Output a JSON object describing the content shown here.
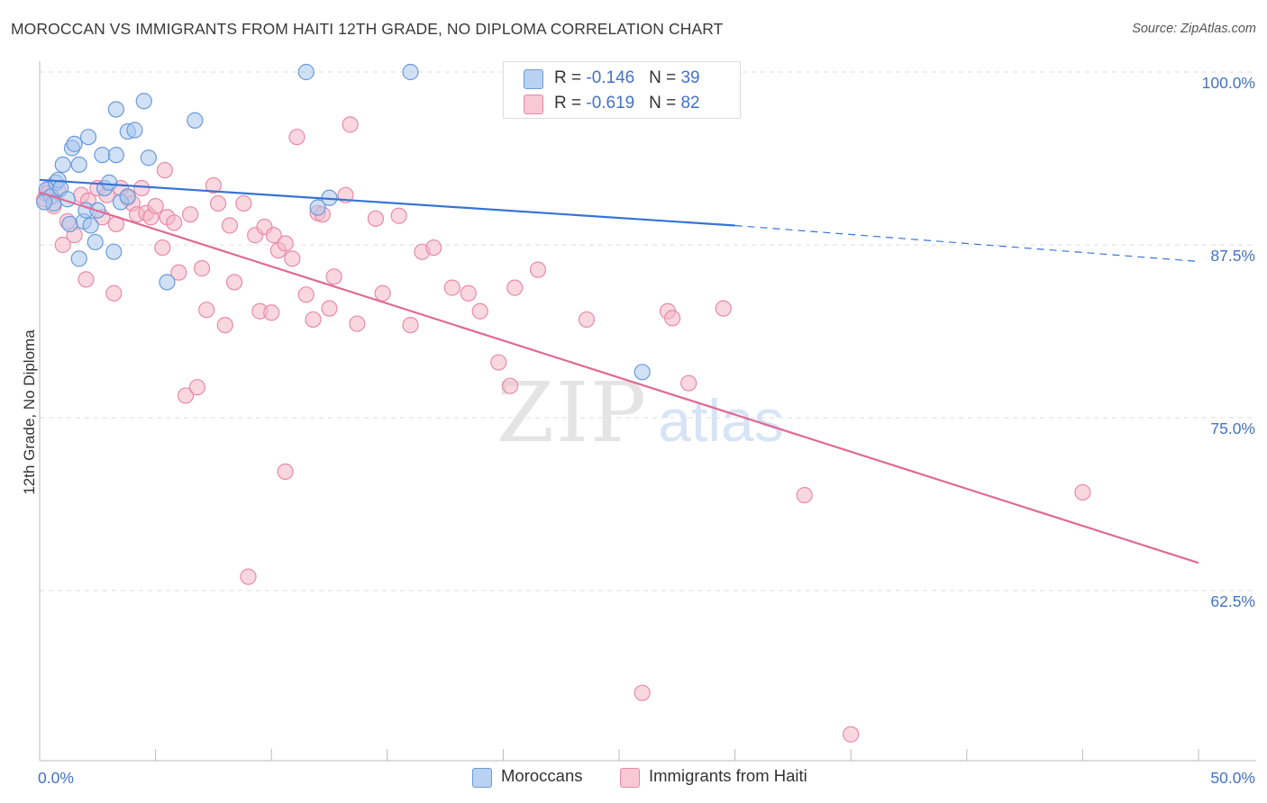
{
  "title": "MOROCCAN VS IMMIGRANTS FROM HAITI 12TH GRADE, NO DIPLOMA CORRELATION CHART",
  "source": "Source: ZipAtlas.com",
  "watermark": {
    "zip": "ZIP",
    "atlas": "atlas"
  },
  "legend": {
    "rows": [
      {
        "r_label": "R = ",
        "r_value": "-0.146",
        "n_label": "N = ",
        "n_value": "39"
      },
      {
        "r_label": "R = ",
        "r_value": "-0.619",
        "n_label": "N = ",
        "n_value": "82"
      }
    ]
  },
  "colors": {
    "blue_fill": "#aac8ef",
    "blue_stroke": "#6b9ad9",
    "blue_line": "#3574d4",
    "pink_fill": "#f4b6c9",
    "pink_stroke": "#e98aa8",
    "pink_line": "#e06a94",
    "axis_label": "#4472c4",
    "grid": "#dcdcdc"
  },
  "chart_data": {
    "type": "scatter",
    "title": "MOROCCAN VS IMMIGRANTS FROM HAITI 12TH GRADE, NO DIPLOMA CORRELATION CHART",
    "xlabel": "",
    "ylabel": "12th Grade, No Diploma",
    "xlim": [
      0,
      50
    ],
    "ylim": [
      50.5,
      101
    ],
    "x_tick_labels": [
      "0.0%",
      "50.0%"
    ],
    "y_ticks": [
      100,
      87.5,
      75,
      62.5
    ],
    "y_tick_labels": [
      "100.0%",
      "87.5%",
      "75.0%",
      "62.5%"
    ],
    "legend_position": "bottom",
    "series": [
      {
        "name": "Moroccans",
        "r": -0.146,
        "n": 39,
        "trend": {
          "x0": 0,
          "y0": 92.2,
          "x1": 30,
          "y1": 88.9,
          "dash_to_x": 50,
          "dash_to_y": 86.3
        },
        "points": [
          [
            0.3,
            91.5
          ],
          [
            0.5,
            91
          ],
          [
            0.6,
            90.5
          ],
          [
            0.7,
            92
          ],
          [
            0.8,
            92.2
          ],
          [
            0.9,
            91.6
          ],
          [
            1.0,
            93.3
          ],
          [
            1.2,
            90.8
          ],
          [
            1.3,
            89
          ],
          [
            1.4,
            94.5
          ],
          [
            1.5,
            94.8
          ],
          [
            1.7,
            86.5
          ],
          [
            1.7,
            93.3
          ],
          [
            1.9,
            89.2
          ],
          [
            2.0,
            90
          ],
          [
            2.1,
            95.3
          ],
          [
            2.2,
            88.9
          ],
          [
            2.4,
            87.7
          ],
          [
            2.5,
            90
          ],
          [
            2.7,
            94
          ],
          [
            2.8,
            91.6
          ],
          [
            3.0,
            92
          ],
          [
            3.2,
            87
          ],
          [
            3.3,
            94
          ],
          [
            3.3,
            97.3
          ],
          [
            3.5,
            90.6
          ],
          [
            3.8,
            91
          ],
          [
            3.8,
            95.7
          ],
          [
            4.1,
            95.8
          ],
          [
            4.5,
            97.9
          ],
          [
            4.7,
            93.8
          ],
          [
            5.5,
            84.8
          ],
          [
            6.7,
            96.5
          ],
          [
            11.5,
            100
          ],
          [
            12.0,
            90.2
          ],
          [
            12.5,
            90.9
          ],
          [
            16.0,
            100
          ],
          [
            26.0,
            78.3
          ],
          [
            0.2,
            90.6
          ]
        ]
      },
      {
        "name": "Immigrants from Haiti",
        "r": -0.619,
        "n": 82,
        "trend": {
          "x0": 0,
          "y0": 91.3,
          "x1": 50,
          "y1": 64.5
        },
        "points": [
          [
            0.2,
            90.8
          ],
          [
            0.4,
            91.5
          ],
          [
            0.6,
            90.3
          ],
          [
            0.8,
            91.4
          ],
          [
            1.0,
            87.5
          ],
          [
            1.2,
            89.2
          ],
          [
            1.5,
            88.2
          ],
          [
            1.8,
            91.1
          ],
          [
            2.0,
            85
          ],
          [
            2.1,
            90.7
          ],
          [
            2.5,
            91.6
          ],
          [
            2.7,
            89.5
          ],
          [
            2.9,
            91.1
          ],
          [
            3.2,
            84
          ],
          [
            3.3,
            89
          ],
          [
            3.5,
            91.6
          ],
          [
            3.8,
            90.9
          ],
          [
            4.0,
            90.5
          ],
          [
            4.2,
            89.7
          ],
          [
            4.4,
            91.6
          ],
          [
            4.6,
            89.8
          ],
          [
            4.8,
            89.5
          ],
          [
            5.0,
            90.3
          ],
          [
            5.3,
            87.3
          ],
          [
            5.4,
            92.9
          ],
          [
            5.5,
            89.5
          ],
          [
            5.8,
            89.1
          ],
          [
            6.0,
            85.5
          ],
          [
            6.3,
            76.6
          ],
          [
            6.5,
            89.7
          ],
          [
            6.8,
            77.2
          ],
          [
            7.0,
            85.8
          ],
          [
            7.2,
            82.8
          ],
          [
            7.5,
            91.8
          ],
          [
            7.7,
            90.5
          ],
          [
            8.0,
            81.7
          ],
          [
            8.2,
            88.9
          ],
          [
            8.4,
            84.8
          ],
          [
            8.8,
            90.5
          ],
          [
            9.0,
            63.5
          ],
          [
            9.3,
            88.2
          ],
          [
            9.5,
            82.7
          ],
          [
            9.7,
            88.8
          ],
          [
            10.0,
            82.6
          ],
          [
            10.1,
            88.2
          ],
          [
            10.3,
            87.1
          ],
          [
            10.6,
            71.1
          ],
          [
            10.6,
            87.6
          ],
          [
            10.9,
            86.5
          ],
          [
            11.1,
            95.3
          ],
          [
            11.5,
            83.9
          ],
          [
            11.8,
            82.1
          ],
          [
            12.0,
            89.8
          ],
          [
            12.2,
            89.7
          ],
          [
            12.5,
            82.9
          ],
          [
            12.7,
            85.2
          ],
          [
            13.2,
            91.1
          ],
          [
            13.4,
            96.2
          ],
          [
            13.7,
            81.8
          ],
          [
            14.5,
            89.4
          ],
          [
            14.8,
            84
          ],
          [
            15.5,
            89.6
          ],
          [
            16.0,
            81.7
          ],
          [
            16.5,
            87
          ],
          [
            17.0,
            87.3
          ],
          [
            17.8,
            84.4
          ],
          [
            18.5,
            84
          ],
          [
            19.0,
            82.7
          ],
          [
            19.8,
            79
          ],
          [
            20.3,
            77.3
          ],
          [
            20.5,
            84.4
          ],
          [
            21.5,
            85.7
          ],
          [
            23.6,
            82.1
          ],
          [
            26.0,
            55.1
          ],
          [
            27.1,
            82.7
          ],
          [
            27.3,
            82.2
          ],
          [
            28.0,
            77.5
          ],
          [
            29.5,
            82.9
          ],
          [
            33.0,
            69.4
          ],
          [
            35.0,
            52.1
          ],
          [
            45.0,
            69.6
          ],
          [
            0.3,
            91.2
          ]
        ]
      }
    ]
  }
}
